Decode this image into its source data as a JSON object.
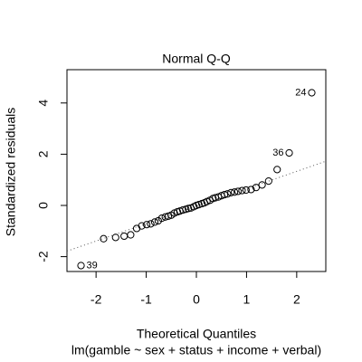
{
  "chart_data": {
    "type": "scatter",
    "title": "Normal Q-Q",
    "x_label": "Theoretical Quantiles",
    "subtitle": "lm(gamble ~ sex + status + income + verbal)",
    "y_label": "Standardized residuals",
    "x": [
      -2.3,
      -1.85,
      -1.61,
      -1.44,
      -1.31,
      -1.19,
      -1.09,
      -0.99,
      -0.91,
      -0.83,
      -0.76,
      -0.69,
      -0.62,
      -0.56,
      -0.5,
      -0.44,
      -0.38,
      -0.33,
      -0.27,
      -0.21,
      -0.16,
      -0.11,
      -0.05,
      0.0,
      0.05,
      0.11,
      0.16,
      0.21,
      0.27,
      0.33,
      0.38,
      0.44,
      0.5,
      0.56,
      0.62,
      0.69,
      0.76,
      0.83,
      0.91,
      0.99,
      1.09,
      1.19,
      1.31,
      1.44,
      1.61,
      1.85,
      2.3
    ],
    "values": [
      -2.35,
      -1.3,
      -1.25,
      -1.2,
      -1.15,
      -0.9,
      -0.8,
      -0.75,
      -0.72,
      -0.65,
      -0.6,
      -0.5,
      -0.45,
      -0.42,
      -0.38,
      -0.3,
      -0.25,
      -0.22,
      -0.18,
      -0.15,
      -0.12,
      -0.1,
      -0.05,
      0.0,
      0.03,
      0.07,
      0.1,
      0.15,
      0.2,
      0.27,
      0.3,
      0.33,
      0.38,
      0.42,
      0.45,
      0.5,
      0.52,
      0.55,
      0.58,
      0.6,
      0.62,
      0.7,
      0.8,
      0.95,
      1.4,
      2.05,
      4.4
    ],
    "point_labels": [
      "39",
      null,
      null,
      null,
      null,
      null,
      null,
      null,
      null,
      null,
      null,
      null,
      null,
      null,
      null,
      null,
      null,
      null,
      null,
      null,
      null,
      null,
      null,
      null,
      null,
      null,
      null,
      null,
      null,
      null,
      null,
      null,
      null,
      null,
      null,
      null,
      null,
      null,
      null,
      null,
      null,
      null,
      null,
      null,
      null,
      "36",
      "24"
    ],
    "reference_line": {
      "intercept": -0.03,
      "slope": 0.68
    },
    "xlim": [
      -2.58,
      2.58
    ],
    "ylim": [
      -2.58,
      5.3
    ],
    "xticks": [
      -2,
      -1,
      0,
      1,
      2
    ],
    "yticks": [
      -2,
      0,
      2,
      4
    ]
  }
}
